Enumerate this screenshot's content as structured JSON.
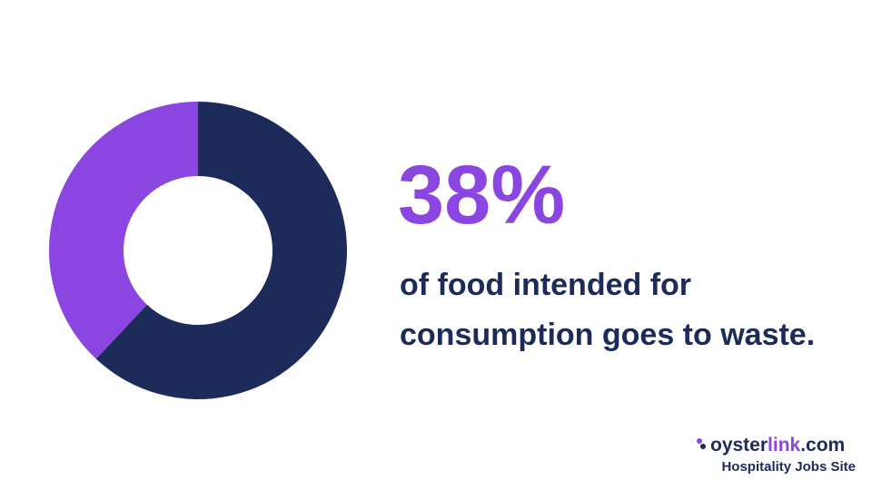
{
  "chart_data": {
    "type": "donut",
    "categories": [
      null,
      null
    ],
    "values": [
      62,
      38
    ],
    "value_labels": [
      null,
      "38%"
    ],
    "colors": [
      "#1d2b5b",
      "#8b45e0"
    ],
    "annotation": [
      "of food intended for",
      "consumption goes to waste."
    ]
  },
  "brand": {
    "name": "oyster",
    "highlight": "link",
    "suffix": ".com",
    "tagline": "Hospitality Jobs Site"
  }
}
